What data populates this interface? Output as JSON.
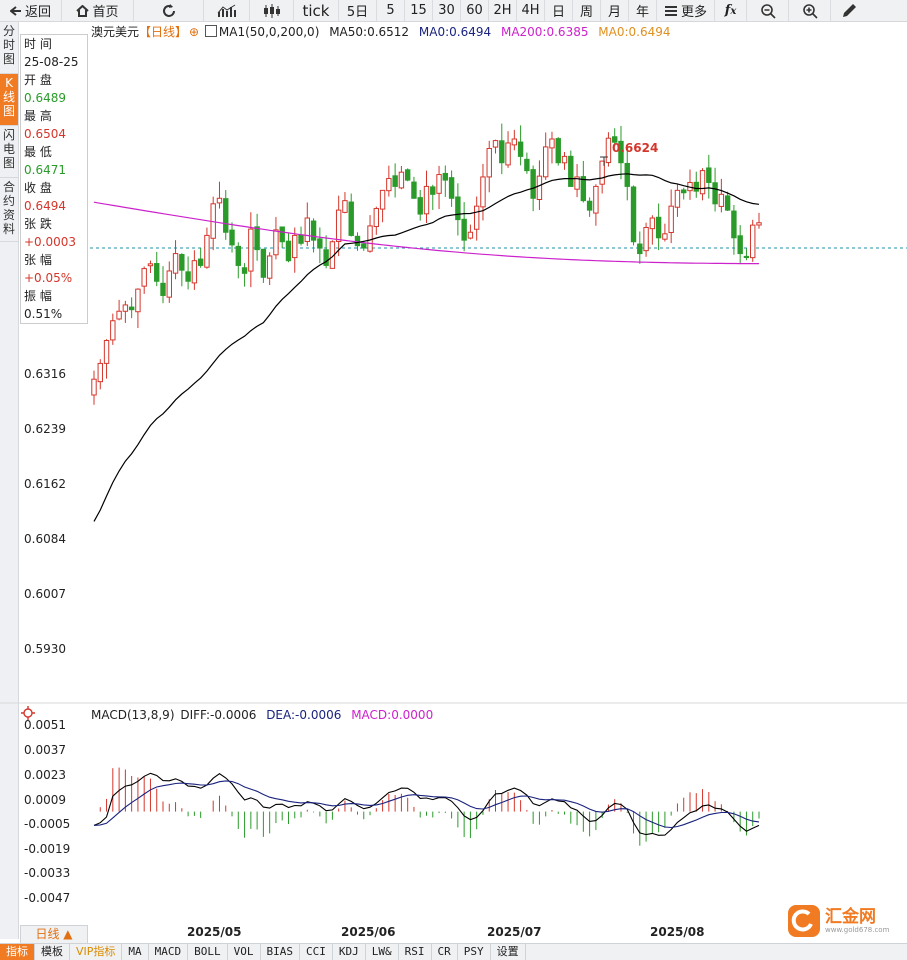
{
  "toolbar": {
    "back": "返回",
    "home": "首页",
    "tick": "tick",
    "periods": [
      "5日",
      "5",
      "15",
      "30",
      "60",
      "2H",
      "4H",
      "日",
      "周",
      "月",
      "年"
    ],
    "more": "更多"
  },
  "sidetabs": [
    "分时图",
    "K线图",
    "闪电图",
    "合约资料"
  ],
  "info": {
    "time_label": "时 间",
    "time_value": "25-08-25",
    "open_label": "开 盘",
    "open_value": "0.6489",
    "high_label": "最 高",
    "high_value": "0.6504",
    "low_label": "最 低",
    "low_value": "0.6471",
    "close_label": "收 盘",
    "close_value": "0.6494",
    "change_label": "张 跌",
    "change_value": "+0.0003",
    "pct_label": "张 幅",
    "pct_value": "+0.05%",
    "amp_label": "振 幅",
    "amp_value": "0.51%"
  },
  "legend": {
    "symbol": "澳元美元",
    "period": "【日线】",
    "ma1": "MA1(50,0,200,0)",
    "ma50": "MA50:0.6512",
    "ma0a": "MA0:0.6494",
    "ma200": "MA200:0.6385",
    "ma0b": "MA0:0.6494"
  },
  "price_axis": [
    "0.6316",
    "0.6239",
    "0.6162",
    "0.6084",
    "0.6007",
    "0.5930"
  ],
  "high_marker": "0.6624",
  "macd_legend": {
    "name": "MACD(13,8,9)",
    "diff": "DIFF:-0.0006",
    "dea": "DEA:-0.0006",
    "macd": "MACD:0.0000"
  },
  "macd_axis": [
    "0.0051",
    "0.0037",
    "0.0023",
    "0.0009",
    "-0.0005",
    "-0.0019",
    "-0.0033",
    "-0.0047"
  ],
  "x_axis": [
    "2025/05",
    "2025/06",
    "2025/07",
    "2025/08"
  ],
  "period_selector": "日线 ▲",
  "bottom_tabs": [
    "指标",
    "模板",
    "VIP指标",
    "MA",
    "MACD",
    "BOLL",
    "VOL",
    "BIAS",
    "CCI",
    "KDJ",
    "LW&",
    "RSI",
    "CR",
    "PSY",
    "设置"
  ],
  "logo_text": "汇金网",
  "logo_sub": "www.gold678.com",
  "colors": {
    "up": "#d4362b",
    "down": "#2a9b2a",
    "ma50": "#000000",
    "ma200": "#cc22cc",
    "accent": "#f07b23",
    "diff": "#000000",
    "dea": "#1a237e"
  },
  "chart_data": {
    "type": "candlestick",
    "title": "澳元美元 日线",
    "ylim": [
      0.589,
      0.67
    ],
    "closes": [
      0.6296,
      0.6316,
      0.6345,
      0.637,
      0.6382,
      0.639,
      0.6384,
      0.641,
      0.6436,
      0.6442,
      0.642,
      0.6402,
      0.6433,
      0.6455,
      0.6434,
      0.642,
      0.6446,
      0.644,
      0.6478,
      0.6518,
      0.6525,
      0.6482,
      0.6466,
      0.644,
      0.643,
      0.6486,
      0.646,
      0.6425,
      0.6452,
      0.6485,
      0.647,
      0.6446,
      0.6478,
      0.6468,
      0.65,
      0.6472,
      0.6462,
      0.644,
      0.647,
      0.651,
      0.6522,
      0.6478,
      0.6465,
      0.6462,
      0.649,
      0.6512,
      0.6535,
      0.655,
      0.654,
      0.6558,
      0.6548,
      0.6525,
      0.6505,
      0.654,
      0.653,
      0.6555,
      0.6548,
      0.6525,
      0.6498,
      0.6472,
      0.6482,
      0.6515,
      0.6552,
      0.6588,
      0.6598,
      0.657,
      0.6595,
      0.66,
      0.6578,
      0.656,
      0.6525,
      0.6553,
      0.659,
      0.66,
      0.657,
      0.6578,
      0.654,
      0.6552,
      0.6522,
      0.651,
      0.654,
      0.6572,
      0.6601,
      0.6596,
      0.657,
      0.654,
      0.647,
      0.6455,
      0.6488,
      0.65,
      0.6475,
      0.648,
      0.6515,
      0.6535,
      0.6532,
      0.6545,
      0.6534,
      0.656,
      0.6545,
      0.6518,
      0.653,
      0.651,
      0.6475,
      0.6455,
      0.645,
      0.6491,
      0.6494
    ]
  }
}
